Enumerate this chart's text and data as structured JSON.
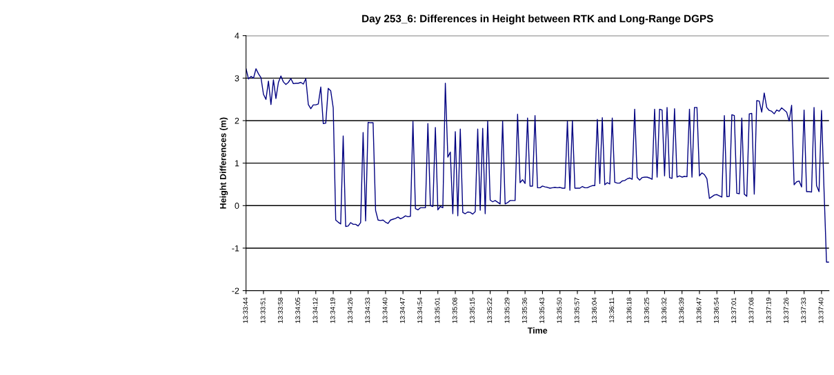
{
  "chart_data": {
    "type": "line",
    "title": "Day 253_6: Differences in Height between RTK and Long-Range DGPS",
    "xlabel": "Time",
    "ylabel": "Height Differences (m)",
    "categories": [
      "13:33:44",
      null,
      null,
      null,
      null,
      null,
      null,
      "13:33:51",
      null,
      null,
      null,
      null,
      null,
      null,
      "13:33:58",
      null,
      null,
      null,
      null,
      null,
      null,
      "13:34:05",
      null,
      null,
      null,
      null,
      null,
      null,
      "13:34:12",
      null,
      null,
      null,
      null,
      null,
      null,
      "13:34:19",
      null,
      null,
      null,
      null,
      null,
      null,
      "13:34:26",
      null,
      null,
      null,
      null,
      null,
      null,
      "13:34:33",
      null,
      null,
      null,
      null,
      null,
      null,
      "13:34:40",
      null,
      null,
      null,
      null,
      null,
      null,
      "13:34:47",
      null,
      null,
      null,
      null,
      null,
      null,
      "13:34:54",
      null,
      null,
      null,
      null,
      null,
      null,
      "13:35:01",
      null,
      null,
      null,
      null,
      null,
      null,
      "13:35:08",
      null,
      null,
      null,
      null,
      null,
      null,
      "13:35:15",
      null,
      null,
      null,
      null,
      null,
      null,
      "13:35:22",
      null,
      null,
      null,
      null,
      null,
      null,
      "13:35:29",
      null,
      null,
      null,
      null,
      null,
      null,
      "13:35:36",
      null,
      null,
      null,
      null,
      null,
      null,
      "13:35:43",
      null,
      null,
      null,
      null,
      null,
      null,
      "13:35:50",
      null,
      null,
      null,
      null,
      null,
      null,
      "13:35:57",
      null,
      null,
      null,
      null,
      null,
      null,
      "13:36:04",
      null,
      null,
      null,
      null,
      null,
      null,
      "13:36:11",
      null,
      null,
      null,
      null,
      null,
      null,
      "13:36:18",
      null,
      null,
      null,
      null,
      null,
      null,
      "13:36:25",
      null,
      null,
      null,
      null,
      null,
      null,
      "13:36:32",
      null,
      null,
      null,
      null,
      null,
      null,
      "13:36:39",
      null,
      null,
      null,
      null,
      null,
      null,
      "13:36:47",
      null,
      null,
      null,
      null,
      null,
      null,
      "13:36:54",
      null,
      null,
      null,
      null,
      null,
      null,
      "13:37:01",
      null,
      null,
      null,
      null,
      null,
      null,
      "13:37:08",
      null,
      null,
      null,
      null,
      null,
      null,
      "13:37:19",
      null,
      null,
      null,
      null,
      null,
      null,
      "13:37:26",
      null,
      null,
      null,
      null,
      null,
      null,
      "13:37:33",
      null,
      null,
      null,
      null,
      null,
      null,
      "13:37:40",
      null,
      null,
      null
    ],
    "series": [
      {
        "color": "#000080",
        "values": [
          3.22,
          2.98,
          3.04,
          3.0,
          3.22,
          3.1,
          3.01,
          2.62,
          2.5,
          2.93,
          2.38,
          2.96,
          2.52,
          2.9,
          3.05,
          2.91,
          2.85,
          2.9,
          2.99,
          2.87,
          2.88,
          2.88,
          2.9,
          2.86,
          2.99,
          2.38,
          2.28,
          2.37,
          2.37,
          2.39,
          2.79,
          1.93,
          1.94,
          2.76,
          2.7,
          2.3,
          -0.34,
          -0.39,
          -0.43,
          1.64,
          -0.49,
          -0.48,
          -0.4,
          -0.44,
          -0.44,
          -0.48,
          -0.4,
          1.72,
          -0.36,
          1.96,
          1.95,
          1.95,
          -0.11,
          -0.34,
          -0.35,
          -0.34,
          -0.39,
          -0.42,
          -0.34,
          -0.32,
          -0.3,
          -0.27,
          -0.31,
          -0.28,
          -0.24,
          -0.26,
          -0.25,
          1.98,
          -0.07,
          -0.1,
          -0.05,
          -0.05,
          -0.05,
          1.93,
          0.0,
          -0.02,
          1.84,
          -0.1,
          -0.02,
          -0.05,
          2.88,
          1.14,
          1.26,
          -0.19,
          1.74,
          -0.24,
          1.8,
          -0.16,
          -0.19,
          -0.15,
          -0.16,
          -0.2,
          -0.14,
          1.8,
          -0.11,
          1.82,
          -0.19,
          1.99,
          0.13,
          0.09,
          0.12,
          0.08,
          0.04,
          1.99,
          0.04,
          0.07,
          0.12,
          0.12,
          0.12,
          2.15,
          0.54,
          0.61,
          0.52,
          2.06,
          0.46,
          0.46,
          2.12,
          0.42,
          0.42,
          0.46,
          0.44,
          0.43,
          0.41,
          0.42,
          0.43,
          0.42,
          0.43,
          0.41,
          0.41,
          1.99,
          0.36,
          2.0,
          0.41,
          0.41,
          0.41,
          0.45,
          0.42,
          0.42,
          0.45,
          0.47,
          0.47,
          2.03,
          0.52,
          2.07,
          0.49,
          0.54,
          0.51,
          2.06,
          0.55,
          0.53,
          0.53,
          0.58,
          0.59,
          0.63,
          0.65,
          0.62,
          2.27,
          0.66,
          0.6,
          0.66,
          0.67,
          0.67,
          0.65,
          0.62,
          2.27,
          0.67,
          2.27,
          2.25,
          0.7,
          2.31,
          0.66,
          0.64,
          2.28,
          0.67,
          0.7,
          0.67,
          0.69,
          0.68,
          2.27,
          0.67,
          2.31,
          2.31,
          0.7,
          0.77,
          0.73,
          0.63,
          0.17,
          0.21,
          0.25,
          0.26,
          0.23,
          0.2,
          2.12,
          0.21,
          0.22,
          2.14,
          2.12,
          0.29,
          0.28,
          2.06,
          0.27,
          0.22,
          2.16,
          2.17,
          0.27,
          2.47,
          2.46,
          2.2,
          2.65,
          2.31,
          2.24,
          2.22,
          2.16,
          2.25,
          2.22,
          2.3,
          2.25,
          2.2,
          1.99,
          2.36,
          0.49,
          0.56,
          0.58,
          0.44,
          2.25,
          0.33,
          0.33,
          0.32,
          2.31,
          0.47,
          0.33,
          2.24,
          0.38,
          -1.33,
          -1.33
        ]
      }
    ],
    "ylim": [
      -2,
      4
    ],
    "yticks": [
      -2,
      -1,
      0,
      1,
      2,
      3,
      4
    ],
    "grid": "y",
    "marker": "none",
    "line_style": "solid",
    "legend": false
  }
}
